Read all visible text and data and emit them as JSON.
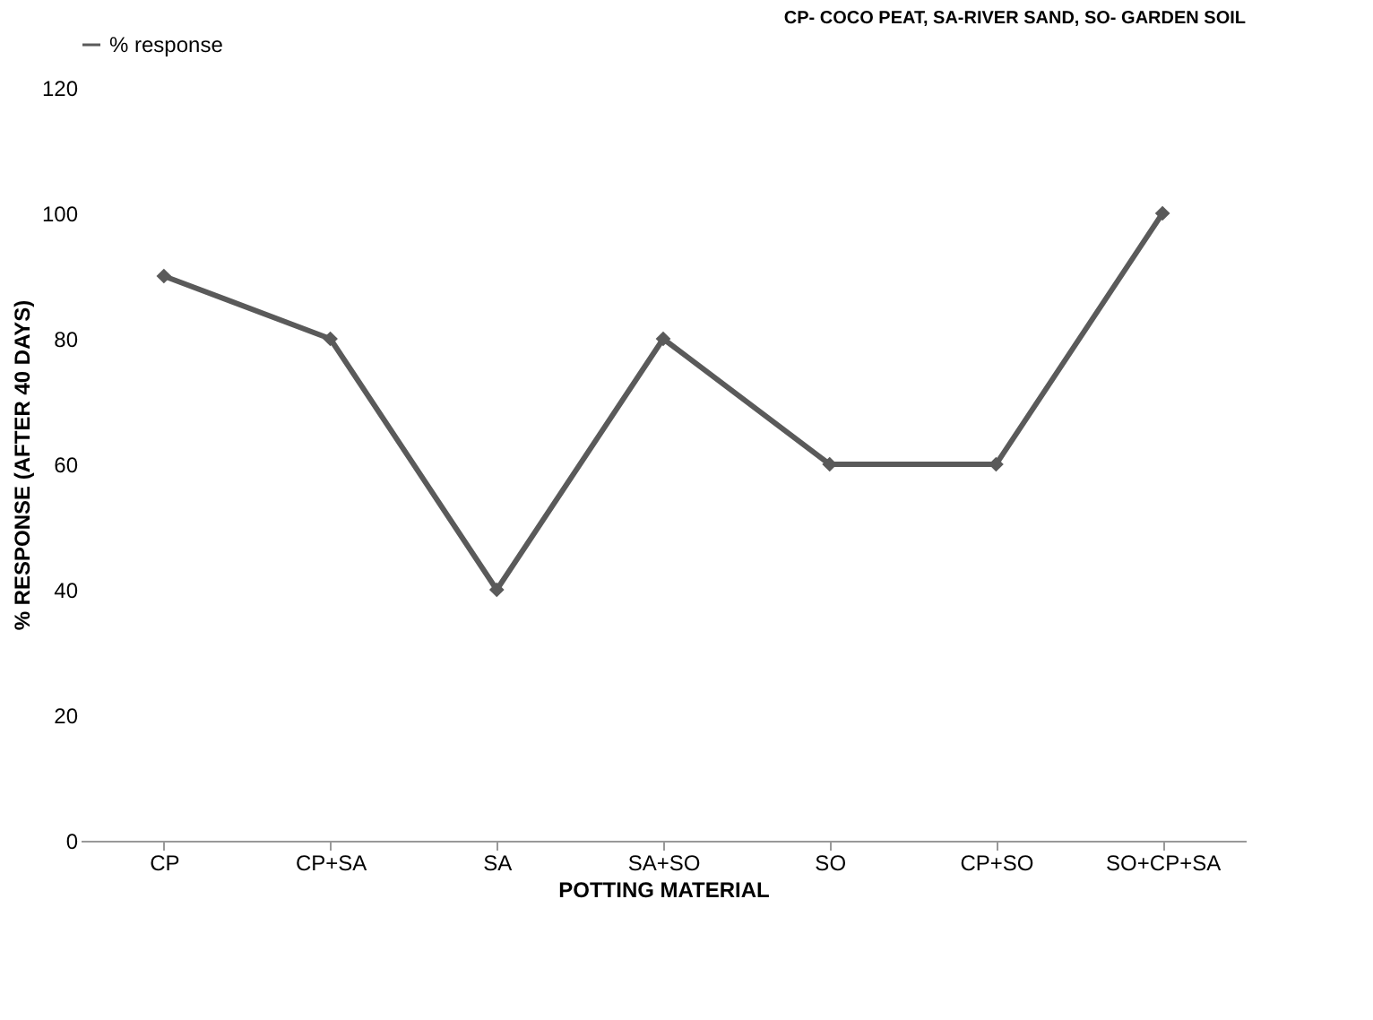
{
  "chart_data": {
    "type": "line",
    "categories": [
      "CP",
      "CP+SA",
      "SA",
      "SA+SO",
      "SO",
      "CP+SO",
      "SO+CP+SA"
    ],
    "series": [
      {
        "name": "% response",
        "color": "#5a5a5a",
        "values": [
          90,
          80,
          40,
          80,
          60,
          60,
          100
        ]
      }
    ],
    "ylim": [
      0,
      120
    ],
    "yticks": [
      0,
      20,
      40,
      60,
      80,
      100,
      120
    ],
    "xlabel": "POTTING MATERIAL",
    "ylabel": "% RESPONSE (AFTER 40 DAYS)",
    "annotations": [
      "CP- COCO PEAT, SA-RIVER SAND, SO- GARDEN SOIL"
    ],
    "legend": "top",
    "marker": "diamond"
  }
}
